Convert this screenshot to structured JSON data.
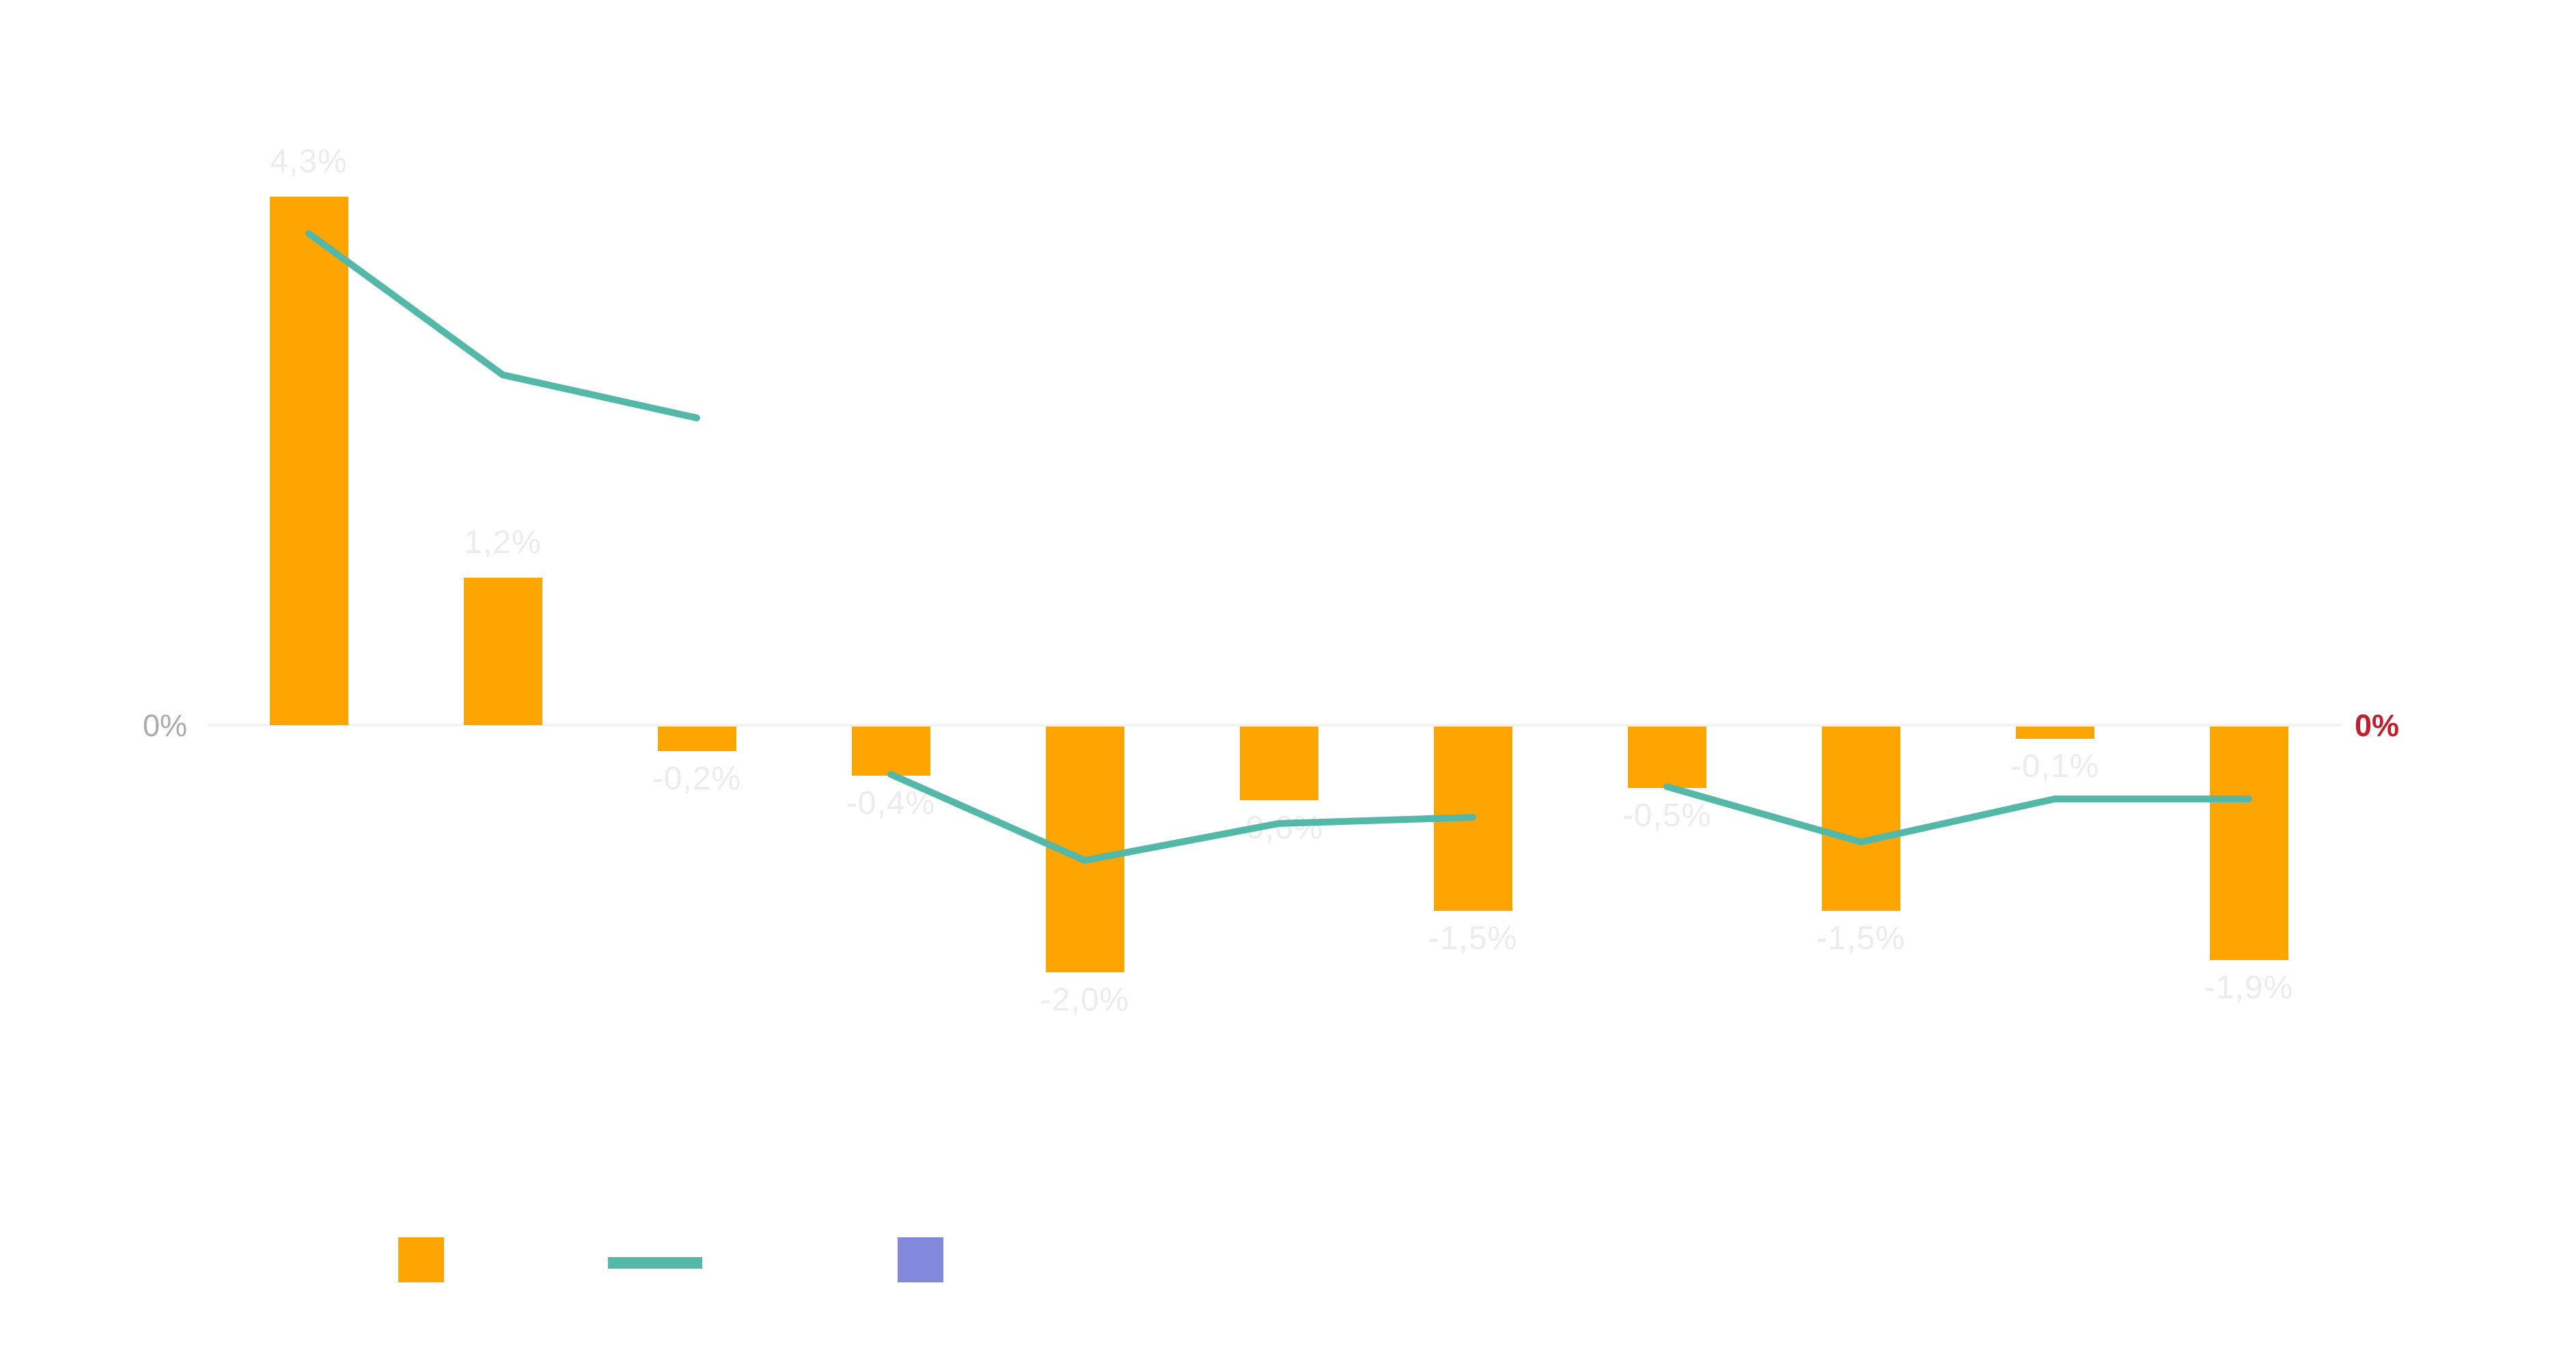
{
  "axis": {
    "left_zero_label": "0%",
    "right_zero_label": "0%"
  },
  "colors": {
    "bar": "#FFA502",
    "line": "#54B8A8",
    "legend_third_series": "#8289DB",
    "axis_left_label": "#ABABAB",
    "axis_right_label": "#BE202E",
    "data_label": "#ECECEC",
    "background": "#FFFFFF"
  },
  "legend": {
    "items": [
      {
        "shape": "square",
        "color": "#FFA502",
        "label": ""
      },
      {
        "shape": "line",
        "color": "#54B8A8",
        "label": ""
      },
      {
        "shape": "square",
        "color": "#8289DB",
        "label": ""
      }
    ]
  },
  "chart_data": {
    "type": "bar",
    "combo": "bar+line",
    "title": "",
    "xlabel": "",
    "ylabel": "",
    "unit": "%",
    "decimal_separator": ",",
    "n_categories": 11,
    "category_labels_visible": false,
    "grid": false,
    "legend_position": "bottom-left",
    "baseline_value": 0,
    "axis_tick_labels": {
      "left": "0%",
      "right": "0%"
    },
    "bar_series": {
      "values": [
        4.3,
        1.2,
        -0.2,
        -0.4,
        -2.0,
        -0.6,
        -1.5,
        -0.5,
        -1.5,
        -0.1,
        -1.9
      ],
      "data_labels": [
        "4,3%",
        "1,2%",
        "-0,2%",
        "-0,4%",
        "-2,0%",
        "-0,6%",
        "-1,5%",
        "-0,5%",
        "-1,5%",
        "-0,1%",
        "-1,9%"
      ]
    },
    "line_series": {
      "values_estimated_from_pixels": true,
      "segments": [
        {
          "points": [
            {
              "x": 0,
              "y": 4.0
            },
            {
              "x": 1,
              "y": 2.85
            },
            {
              "x": 2,
              "y": 2.5
            }
          ]
        },
        {
          "points": [
            {
              "x": 3,
              "y": -0.4
            },
            {
              "x": 4,
              "y": -1.1
            },
            {
              "x": 5,
              "y": -0.8
            },
            {
              "x": 6,
              "y": -0.75
            }
          ]
        },
        {
          "points": [
            {
              "x": 7,
              "y": -0.5
            },
            {
              "x": 8,
              "y": -0.95
            },
            {
              "x": 9,
              "y": -0.6
            },
            {
              "x": 10,
              "y": -0.6
            }
          ]
        }
      ]
    }
  }
}
